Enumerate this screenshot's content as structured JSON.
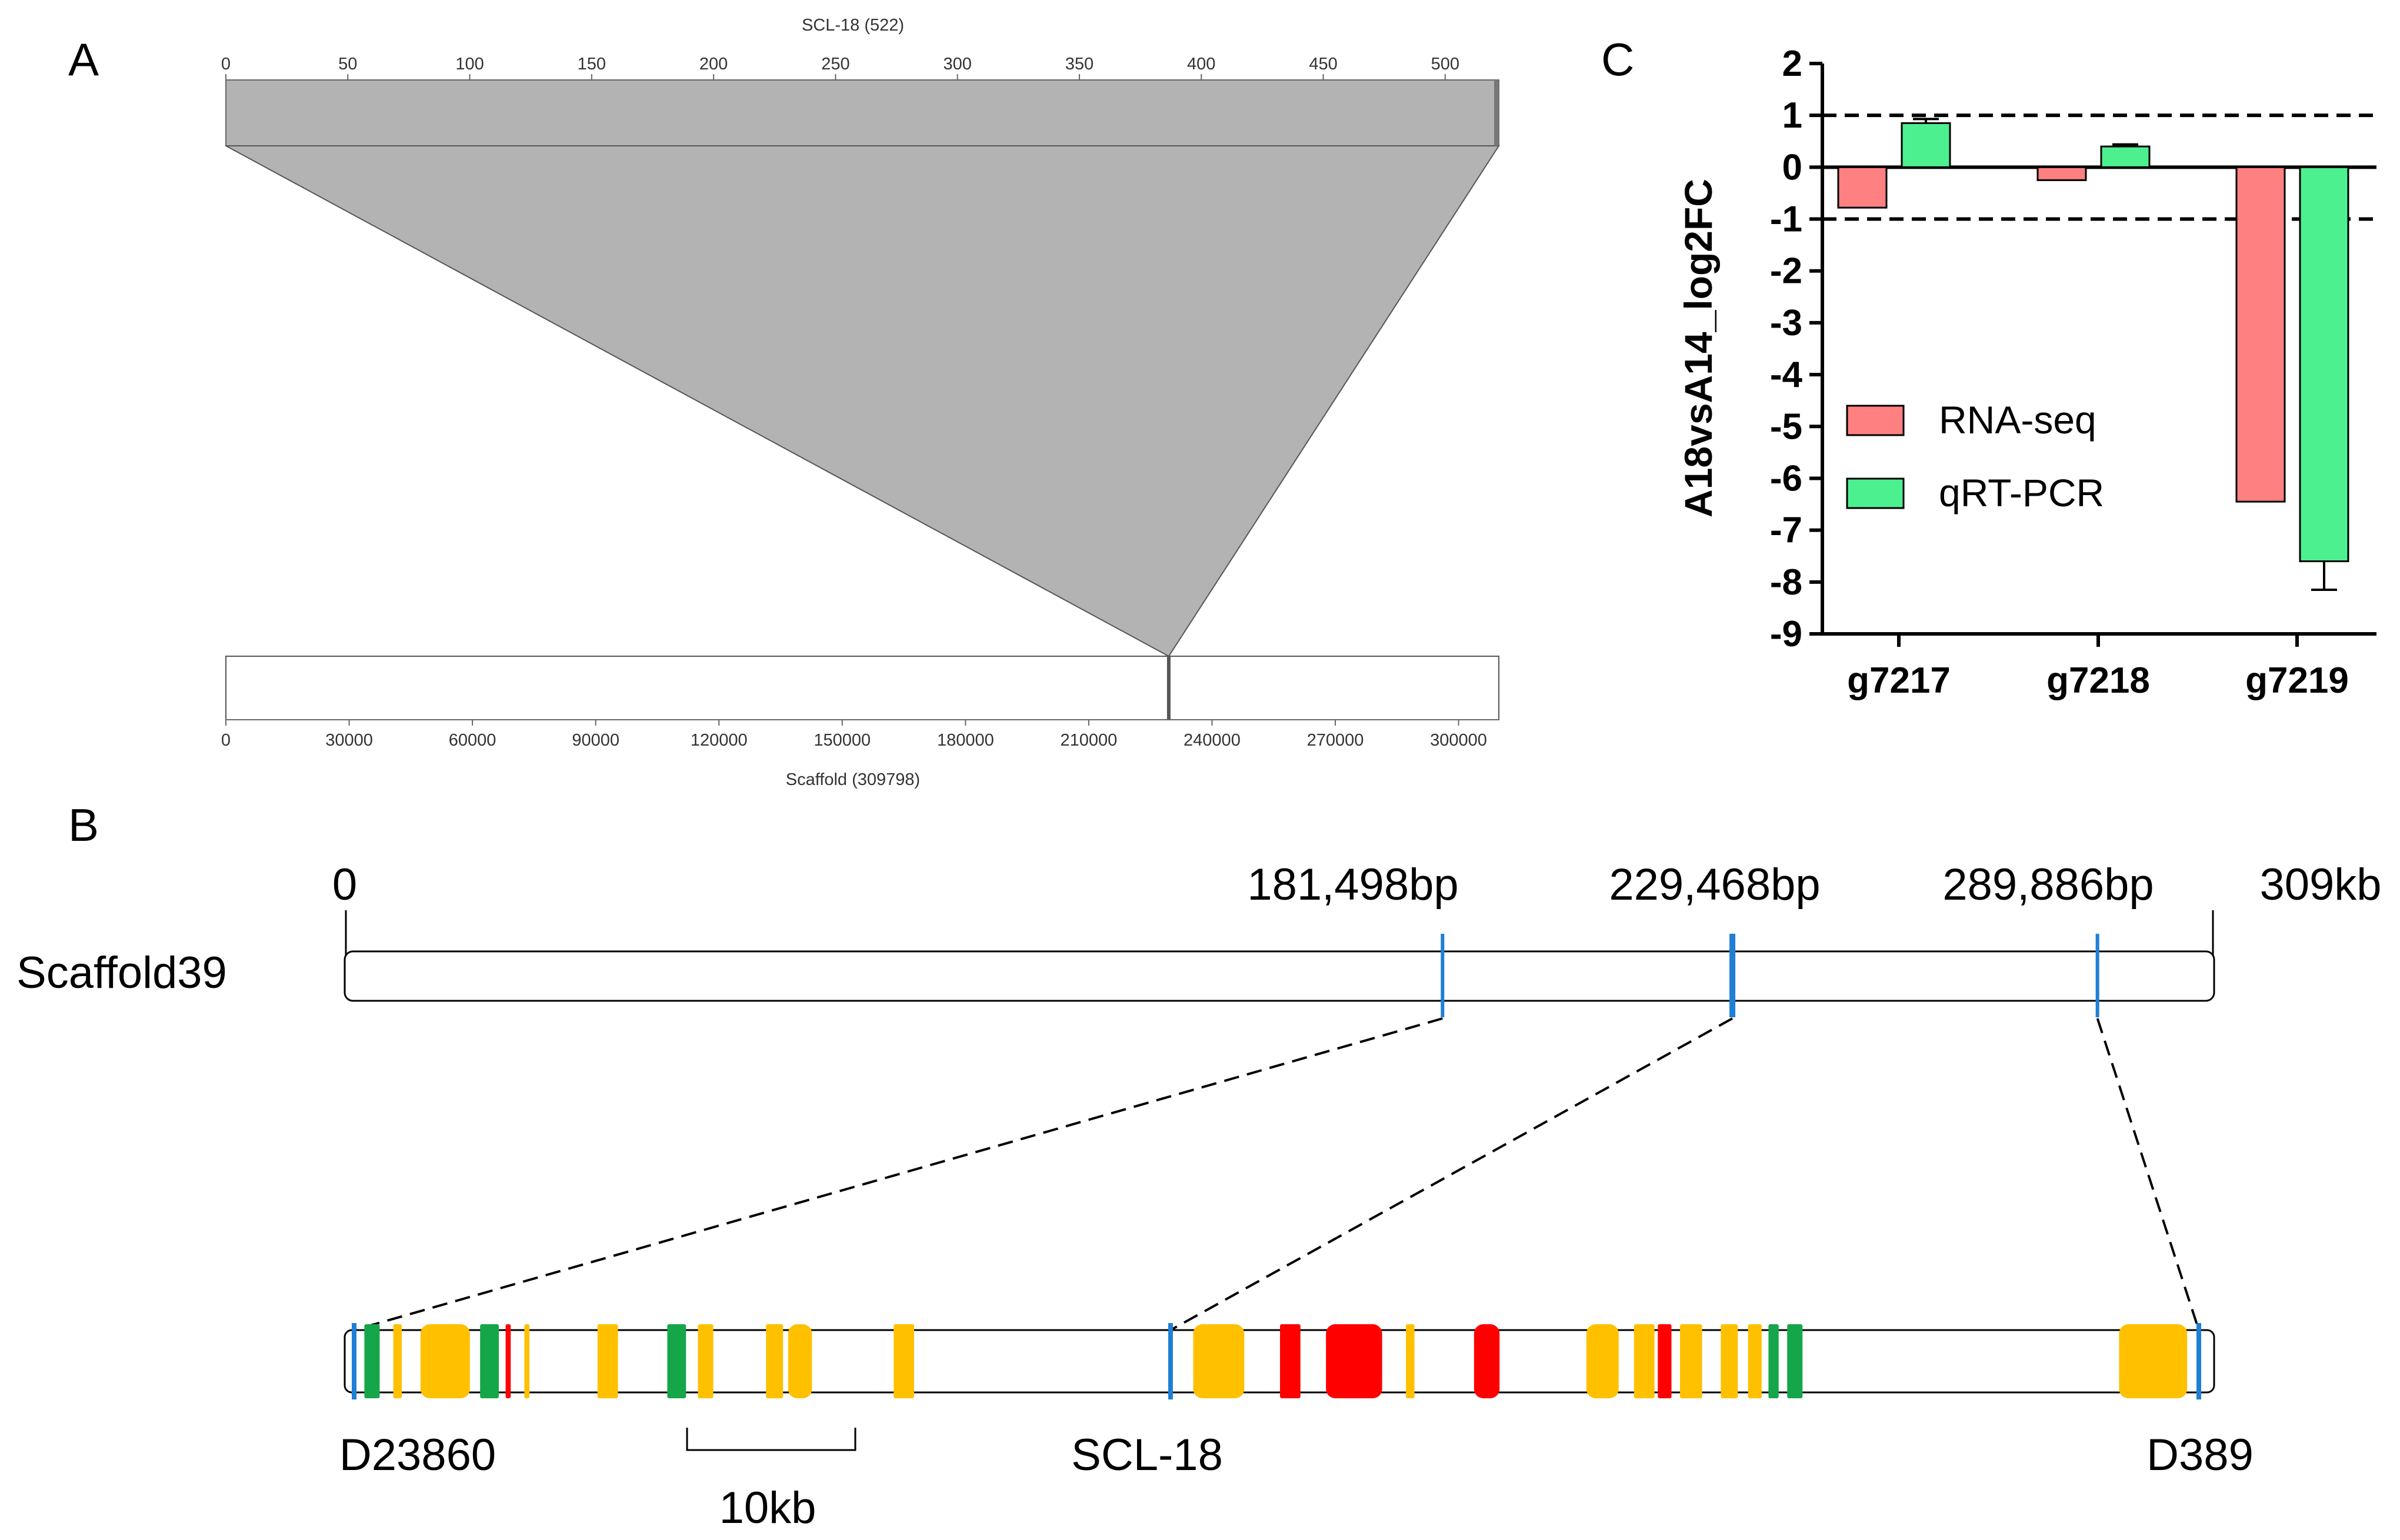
{
  "panels": {
    "a": "A",
    "b": "B",
    "c": "C"
  },
  "panel_a": {
    "top_label": "SCL-18 (522)",
    "bottom_label": "Scaffold (309798)",
    "top_length": 522,
    "bottom_length": 309798,
    "top_ticks": [
      "0",
      "50",
      "100",
      "150",
      "200",
      "250",
      "300",
      "350",
      "400",
      "450",
      "500"
    ],
    "bottom_ticks": [
      "0",
      "30000",
      "60000",
      "90000",
      "120000",
      "150000",
      "180000",
      "210000",
      "240000",
      "270000",
      "300000"
    ],
    "alignment": {
      "query_start": 0,
      "query_end": 522,
      "target_position": 229468
    },
    "colors": {
      "fill": "#b3b3b3",
      "marker": "#555555"
    }
  },
  "panel_b": {
    "scaffold_name": "Scaffold39",
    "start_label": "0",
    "end_label": "309kb",
    "scaffold_length_kb": 309,
    "positions": [
      {
        "label": "181,498bp",
        "bp": 181498
      },
      {
        "label": "229,468bp",
        "bp": 229468
      },
      {
        "label": "289,886bp",
        "bp": 289886
      }
    ],
    "markers": [
      "D23860",
      "SCL-18",
      "D389"
    ],
    "scale_bar": "10kb",
    "colors": {
      "marker": "#1f7fd6",
      "green": "#16a64a",
      "orange": "#ffc000",
      "red": "#ff0000"
    },
    "genes": [
      {
        "color": "green",
        "start_kb": 182.1,
        "end_kb": 183.0
      },
      {
        "color": "orange",
        "start_kb": 183.8,
        "end_kb": 184.3
      },
      {
        "color": "orange",
        "start_kb": 185.4,
        "end_kb": 188.3
      },
      {
        "color": "green",
        "start_kb": 188.9,
        "end_kb": 190.0
      },
      {
        "color": "red",
        "start_kb": 190.4,
        "end_kb": 190.7
      },
      {
        "color": "orange",
        "start_kb": 191.5,
        "end_kb": 191.8
      },
      {
        "color": "orange",
        "start_kb": 195.8,
        "end_kb": 197.0
      },
      {
        "color": "green",
        "start_kb": 199.9,
        "end_kb": 201.0
      },
      {
        "color": "orange",
        "start_kb": 201.7,
        "end_kb": 202.6
      },
      {
        "color": "orange",
        "start_kb": 205.7,
        "end_kb": 206.7
      },
      {
        "color": "orange",
        "start_kb": 207.0,
        "end_kb": 208.4
      },
      {
        "color": "orange",
        "start_kb": 213.2,
        "end_kb": 214.4
      },
      {
        "color": "orange",
        "start_kb": 230.8,
        "end_kb": 233.8
      },
      {
        "color": "red",
        "start_kb": 235.9,
        "end_kb": 237.1
      },
      {
        "color": "red",
        "start_kb": 238.6,
        "end_kb": 241.9
      },
      {
        "color": "orange",
        "start_kb": 243.3,
        "end_kb": 243.8
      },
      {
        "color": "red",
        "start_kb": 247.3,
        "end_kb": 248.8
      },
      {
        "color": "orange",
        "start_kb": 253.9,
        "end_kb": 255.8
      },
      {
        "color": "orange",
        "start_kb": 256.7,
        "end_kb": 257.9
      },
      {
        "color": "red",
        "start_kb": 258.1,
        "end_kb": 258.9
      },
      {
        "color": "orange",
        "start_kb": 259.4,
        "end_kb": 260.7
      },
      {
        "color": "orange",
        "start_kb": 261.8,
        "end_kb": 262.8
      },
      {
        "color": "orange",
        "start_kb": 263.4,
        "end_kb": 264.2
      },
      {
        "color": "green",
        "start_kb": 264.6,
        "end_kb": 265.2
      },
      {
        "color": "green",
        "start_kb": 265.7,
        "end_kb": 266.6
      },
      {
        "color": "orange",
        "start_kb": 285.2,
        "end_kb": 289.2
      }
    ]
  },
  "chart_data": {
    "type": "bar",
    "title": "",
    "xlabel": "",
    "ylabel": "A18vsA14_log2FC",
    "categories": [
      "g7217",
      "g7218",
      "g7219"
    ],
    "series": [
      {
        "name": "RNA-seq",
        "values": [
          -0.78,
          -0.25,
          -6.45
        ],
        "color": "#ff8080"
      },
      {
        "name": "qRT-PCR",
        "values": [
          0.85,
          0.4,
          -7.6
        ],
        "errors": [
          0.08,
          0.04,
          0.55
        ],
        "color": "#4df08f"
      }
    ],
    "ylim": [
      -9,
      2
    ],
    "yticks": [
      "2",
      "1",
      "0",
      "-1",
      "-2",
      "-3",
      "-4",
      "-5",
      "-6",
      "-7",
      "-8",
      "-9"
    ],
    "reference_lines": [
      1,
      -1
    ],
    "legend": "center-left",
    "grid": false
  }
}
